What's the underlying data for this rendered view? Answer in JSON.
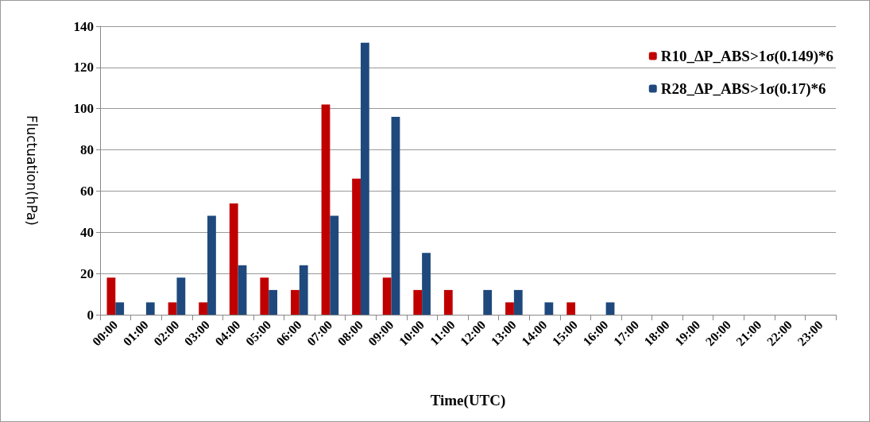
{
  "chart_data": {
    "type": "bar",
    "xlabel": "Time(UTC)",
    "ylabel": "Fluctuation(hPa)",
    "categories": [
      "00:00",
      "01:00",
      "02:00",
      "03:00",
      "04:00",
      "05:00",
      "06:00",
      "07:00",
      "08:00",
      "09:00",
      "10:00",
      "11:00",
      "12:00",
      "13:00",
      "14:00",
      "15:00",
      "16:00",
      "17:00",
      "18:00",
      "19:00",
      "20:00",
      "21:00",
      "22:00",
      "23:00"
    ],
    "series": [
      {
        "name": "R10_ΔP_ABS>1σ(0.149)*6",
        "color": "#c00000",
        "values": [
          18,
          0,
          6,
          6,
          54,
          18,
          12,
          102,
          66,
          18,
          12,
          12,
          0,
          6,
          0,
          6,
          0,
          0,
          0,
          0,
          0,
          0,
          0,
          0
        ]
      },
      {
        "name": "R28_ΔP_ABS>1σ(0.17)*6",
        "color": "#1f497d",
        "values": [
          6,
          6,
          18,
          48,
          24,
          12,
          24,
          48,
          132,
          96,
          30,
          0,
          12,
          12,
          6,
          0,
          6,
          0,
          0,
          0,
          0,
          0,
          0,
          0
        ]
      }
    ],
    "ylim": [
      0,
      140
    ],
    "yticks": [
      0,
      20,
      40,
      60,
      80,
      100,
      120,
      140
    ],
    "grid": "y",
    "legend": "top right"
  }
}
